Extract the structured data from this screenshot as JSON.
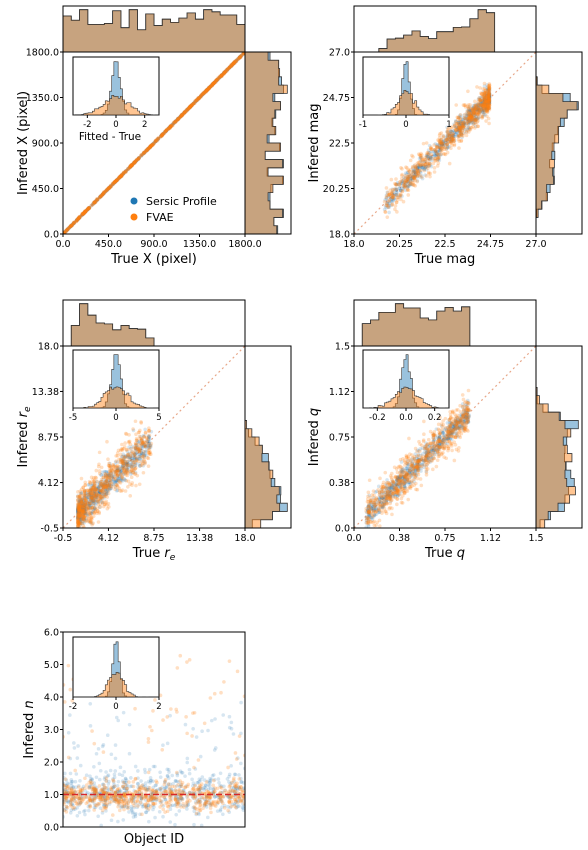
{
  "colors": {
    "sersic": "#1f77b4",
    "fvae": "#ff7f0e",
    "overlap": "#c9a46f",
    "frame": "#000000",
    "diag": "#e8a88a",
    "refline": "#d62728"
  },
  "legend": {
    "entries": [
      "Sersic Profile",
      "FVAE"
    ]
  },
  "chart_data": [
    {
      "type": "scatter",
      "id": "x",
      "xlabel": "True X (pixel)",
      "ylabel": "Infered X (pixel)",
      "xlim": [
        0,
        1800
      ],
      "ylim": [
        0,
        1800
      ],
      "xticks": [
        "0.0",
        "450.0",
        "900.0",
        "1350.0",
        "1800.0"
      ],
      "yticks": [
        "0.0",
        "450.0",
        "900.0",
        "1350.0",
        "1800.0"
      ],
      "xtick_values": [
        0,
        450,
        900,
        1350,
        1800
      ],
      "ytick_values": [
        0,
        450,
        900,
        1350,
        1800
      ],
      "diagonal": true,
      "scatter_model": "exact",
      "scatter_spread": 0,
      "inset": {
        "xlim": [
          -3,
          3
        ],
        "xticks": [
          "-2",
          "0",
          "2"
        ],
        "xtick_values": [
          -2,
          0,
          2
        ],
        "xlabel": "Fitted - True",
        "sersic_sigma": 0.3,
        "fvae_sigma": 0.9
      },
      "legend_visible": true
    },
    {
      "type": "scatter",
      "id": "mag",
      "xlabel": "True mag",
      "ylabel": "Infered mag",
      "xlim": [
        18,
        27
      ],
      "ylim": [
        18,
        27
      ],
      "xticks": [
        "18.0",
        "20.25",
        "22.5",
        "24.75",
        "27.0"
      ],
      "yticks": [
        "18.0",
        "20.25",
        "22.5",
        "24.75",
        "27.0"
      ],
      "xtick_values": [
        18,
        20.25,
        22.5,
        24.75,
        27
      ],
      "ytick_values": [
        18,
        20.25,
        22.5,
        24.75,
        27
      ],
      "diagonal": true,
      "scatter_model": "mag",
      "x_range": [
        19.5,
        24.7
      ],
      "scatter_spread": 0.4,
      "inset": {
        "xlim": [
          -1,
          1
        ],
        "xticks": [
          "-1",
          "0",
          "1"
        ],
        "xtick_values": [
          -1,
          0,
          1
        ],
        "xlabel": "",
        "sersic_sigma": 0.08,
        "fvae_sigma": 0.18
      }
    },
    {
      "type": "scatter",
      "id": "re",
      "xlabel": "True r_e",
      "ylabel": "Infered r_e",
      "xlim": [
        -0.5,
        18
      ],
      "ylim": [
        -0.5,
        18
      ],
      "xticks": [
        "-0.5",
        "4.12",
        "8.75",
        "13.38",
        "18.0"
      ],
      "yticks": [
        "-0.5",
        "4.12",
        "8.75",
        "13.38",
        "18.0"
      ],
      "xtick_values": [
        -0.5,
        4.12,
        8.75,
        13.38,
        18
      ],
      "ytick_values": [
        -0.5,
        4.12,
        8.75,
        13.38,
        18
      ],
      "diagonal": true,
      "scatter_model": "re",
      "x_range": [
        1,
        8.5
      ],
      "scatter_spread": 1.2,
      "inset": {
        "xlim": [
          -5,
          5
        ],
        "xticks": [
          "-5",
          "0",
          "5"
        ],
        "xtick_values": [
          -5,
          0,
          5
        ],
        "xlabel": "",
        "sersic_sigma": 0.5,
        "fvae_sigma": 1.3
      }
    },
    {
      "type": "scatter",
      "id": "q",
      "xlabel": "True q",
      "ylabel": "Infered q",
      "xlim": [
        0,
        1.5
      ],
      "ylim": [
        0,
        1.5
      ],
      "xticks": [
        "0.0",
        "0.38",
        "0.75",
        "1.12",
        "1.5"
      ],
      "yticks": [
        "0.0",
        "0.38",
        "0.75",
        "1.12",
        "1.5"
      ],
      "xtick_values": [
        0,
        0.375,
        0.75,
        1.125,
        1.5
      ],
      "ytick_values": [
        0,
        0.375,
        0.75,
        1.125,
        1.5
      ],
      "diagonal": true,
      "scatter_model": "q",
      "x_range": [
        0.1,
        0.95
      ],
      "scatter_spread": 0.08,
      "inset": {
        "xlim": [
          -0.3,
          0.3
        ],
        "xticks": [
          "-0.2",
          "0.0",
          "0.2"
        ],
        "xtick_values": [
          -0.2,
          0,
          0.2
        ],
        "xlabel": "",
        "sersic_sigma": 0.03,
        "fvae_sigma": 0.08
      }
    },
    {
      "type": "scatter",
      "id": "n",
      "xlabel": "Object ID",
      "ylabel": "Infered n",
      "xlim": [
        0,
        1000
      ],
      "ylim": [
        0,
        6
      ],
      "xticks": [],
      "xtick_values": [],
      "yticks": [
        "0.0",
        "1.0",
        "2.0",
        "3.0",
        "4.0",
        "5.0",
        "6.0"
      ],
      "ytick_values": [
        0,
        1,
        2,
        3,
        4,
        5,
        6
      ],
      "diagonal": false,
      "hline": 1.0,
      "scatter_model": "n",
      "inset": {
        "xlim": [
          -2,
          2
        ],
        "xticks": [
          "-2",
          "0",
          "2"
        ],
        "xtick_values": [
          -2,
          0,
          2
        ],
        "xlabel": "",
        "sersic_sigma": 0.15,
        "fvae_sigma": 0.35
      }
    }
  ]
}
